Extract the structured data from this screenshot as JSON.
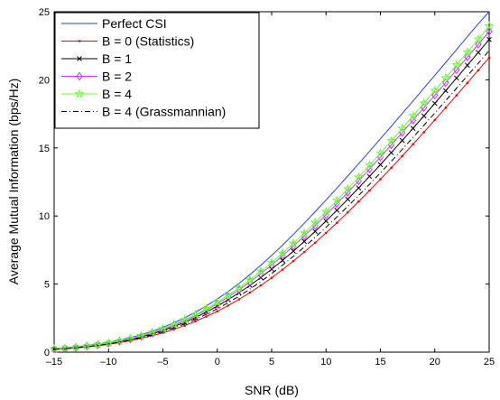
{
  "chart_data": {
    "type": "line",
    "title": "",
    "xlabel": "SNR (dB)",
    "ylabel": "Average Mutual Information (bps/Hz)",
    "xlim": [
      -15,
      25
    ],
    "ylim": [
      0,
      25
    ],
    "xticks": [
      -15,
      -10,
      -5,
      0,
      5,
      10,
      15,
      20,
      25
    ],
    "yticks": [
      0,
      5,
      10,
      15,
      20,
      25
    ],
    "grid": false,
    "legend_position": "top-left",
    "x": [
      -15,
      -14,
      -13,
      -12,
      -11,
      -10,
      -9,
      -8,
      -7,
      -6,
      -5,
      -4,
      -3,
      -2,
      -1,
      0,
      1,
      2,
      3,
      4,
      5,
      6,
      7,
      8,
      9,
      10,
      11,
      12,
      13,
      14,
      15,
      16,
      17,
      18,
      19,
      20,
      21,
      22,
      23,
      24,
      25
    ],
    "series": [
      {
        "name": "Perfect CSI",
        "color": "#1f3fff",
        "dash": "",
        "marker": "none",
        "values": [
          0.25,
          0.31,
          0.39,
          0.48,
          0.59,
          0.72,
          0.88,
          1.06,
          1.28,
          1.53,
          1.82,
          2.15,
          2.52,
          2.94,
          3.4,
          3.9,
          4.45,
          5.05,
          5.69,
          6.38,
          7.1,
          7.86,
          8.65,
          9.47,
          10.31,
          11.17,
          12.05,
          12.94,
          13.84,
          14.75,
          15.67,
          16.59,
          17.52,
          18.45,
          19.39,
          20.33,
          21.27,
          22.22,
          23.17,
          24.12,
          25.0
        ]
      },
      {
        "name": "B = 0 (Statistics)",
        "color": "#ff0000",
        "dash": "",
        "marker": "dot",
        "values": [
          0.2,
          0.25,
          0.31,
          0.38,
          0.47,
          0.57,
          0.7,
          0.84,
          1.01,
          1.2,
          1.42,
          1.67,
          1.95,
          2.27,
          2.62,
          3.0,
          3.42,
          3.88,
          4.37,
          4.9,
          5.46,
          6.06,
          6.69,
          7.35,
          8.04,
          8.76,
          9.5,
          10.27,
          11.06,
          11.87,
          12.7,
          13.54,
          14.4,
          15.27,
          16.15,
          17.05,
          17.95,
          18.86,
          19.78,
          20.7,
          21.63
        ]
      },
      {
        "name": "B = 1",
        "color": "#000000",
        "dash": "",
        "marker": "x",
        "values": [
          0.22,
          0.27,
          0.34,
          0.42,
          0.52,
          0.63,
          0.77,
          0.93,
          1.12,
          1.34,
          1.59,
          1.87,
          2.19,
          2.55,
          2.95,
          3.38,
          3.85,
          4.36,
          4.9,
          5.48,
          6.09,
          6.74,
          7.42,
          8.13,
          8.87,
          9.63,
          10.42,
          11.23,
          12.06,
          12.91,
          13.77,
          14.65,
          15.54,
          16.44,
          17.35,
          18.27,
          19.2,
          20.13,
          21.07,
          22.01,
          22.96
        ]
      },
      {
        "name": "B = 2",
        "color": "#cc33ff",
        "dash": "",
        "marker": "diamond",
        "values": [
          0.23,
          0.28,
          0.35,
          0.44,
          0.54,
          0.66,
          0.8,
          0.97,
          1.17,
          1.4,
          1.66,
          1.96,
          2.3,
          2.68,
          3.1,
          3.55,
          4.05,
          4.58,
          5.15,
          5.76,
          6.4,
          7.08,
          7.79,
          8.53,
          9.29,
          10.08,
          10.9,
          11.73,
          12.58,
          13.45,
          14.33,
          15.22,
          16.12,
          17.03,
          17.95,
          18.87,
          19.8,
          20.73,
          21.67,
          22.61,
          23.55
        ]
      },
      {
        "name": "B = 4",
        "color": "#66ff33",
        "dash": "",
        "marker": "star",
        "values": [
          0.24,
          0.29,
          0.36,
          0.45,
          0.55,
          0.68,
          0.83,
          1.0,
          1.21,
          1.45,
          1.72,
          2.03,
          2.38,
          2.77,
          3.2,
          3.67,
          4.18,
          4.73,
          5.31,
          5.93,
          6.58,
          7.27,
          7.99,
          8.74,
          9.52,
          10.32,
          11.15,
          11.99,
          12.85,
          13.73,
          14.62,
          15.52,
          16.43,
          17.35,
          18.28,
          19.21,
          20.15,
          21.09,
          22.04,
          22.99,
          23.95
        ]
      },
      {
        "name": "B = 4 (Grassmannian)",
        "color": "#000000",
        "dash": "6,3,1,3",
        "marker": "none",
        "values": [
          0.21,
          0.26,
          0.32,
          0.4,
          0.49,
          0.6,
          0.73,
          0.88,
          1.06,
          1.27,
          1.5,
          1.77,
          2.07,
          2.41,
          2.78,
          3.19,
          3.63,
          4.11,
          4.63,
          5.18,
          5.77,
          6.39,
          7.04,
          7.72,
          8.43,
          9.17,
          9.93,
          10.71,
          11.51,
          12.33,
          13.17,
          14.02,
          14.89,
          15.77,
          16.66,
          17.56,
          18.47,
          19.38,
          20.3,
          21.22,
          22.15
        ]
      }
    ]
  }
}
